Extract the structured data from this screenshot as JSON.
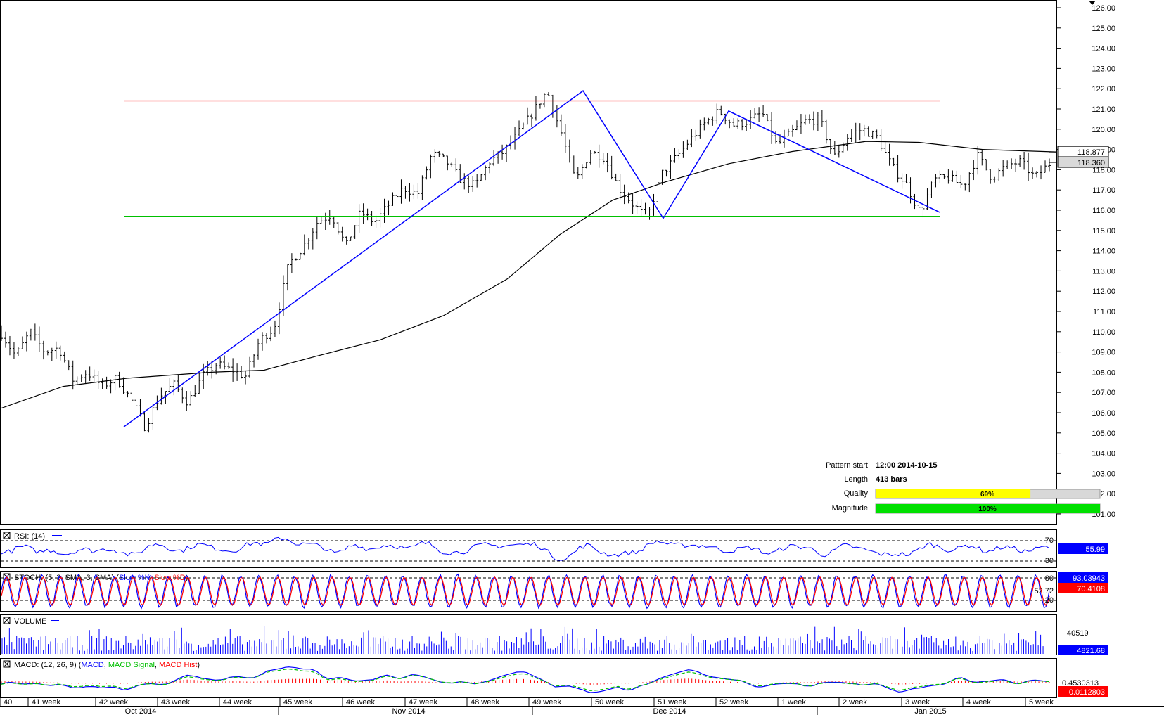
{
  "price_axis": {
    "min": 101,
    "max": 126,
    "ticks": [
      "126.00",
      "125.00",
      "124.00",
      "123.00",
      "122.00",
      "121.00",
      "120.00",
      "119.00",
      "118.00",
      "117.00",
      "116.00",
      "115.00",
      "114.00",
      "113.00",
      "112.00",
      "111.00",
      "110.00",
      "109.00",
      "108.00",
      "107.00",
      "106.00",
      "105.00",
      "104.00",
      "103.00",
      "102.00",
      "101.00"
    ],
    "badges": [
      {
        "label": "118.877",
        "value": 118.877,
        "bg": "#ffffff",
        "fg": "#000000"
      },
      {
        "label": "118.360",
        "value": 118.36,
        "bg": "#d9d9d9",
        "fg": "#000000"
      }
    ]
  },
  "pattern_info": {
    "rows": [
      {
        "label": "Pattern start",
        "value": "12:00 2014-10-15"
      },
      {
        "label": "Length",
        "value": "413 bars"
      }
    ],
    "quality": {
      "label": "Quality",
      "text": "69%",
      "fraction": 0.69,
      "color": "#ffff00"
    },
    "magnitude": {
      "label": "Magnitude",
      "text": "100%",
      "fraction": 1.0,
      "color": "#00e000"
    }
  },
  "indicators": {
    "rsi": {
      "title": "RSI: (14)",
      "levels": [
        "70",
        "30"
      ],
      "badge": "55.99",
      "badge_color": "#0000ff"
    },
    "stoch": {
      "title_prefix": "STOCH: (5, 3, SMA, 3, SMA) (",
      "k_label": "Slow %K",
      "sep": ", ",
      "d_label": "Slow %D",
      "title_suffix": ")",
      "levels": [
        "80",
        "52.72",
        "20"
      ],
      "badges": [
        {
          "label": "93.03943",
          "color": "#0000ff"
        },
        {
          "label": "70.4108",
          "color": "#ff0000"
        }
      ]
    },
    "volume": {
      "title": "VOLUME",
      "level": "40519",
      "badge": "4821.68",
      "badge_color": "#0000ff"
    },
    "macd": {
      "title_prefix": "MACD: (12, 26, 9) (",
      "macd_label": "MACD",
      "signal_label": "MACD Signal",
      "hist_label": "MACD Hist",
      "sep": ", ",
      "title_suffix": ")",
      "level": "0.4530313",
      "badge": "0.0112803",
      "badge_color": "#ff0000"
    }
  },
  "time_axis": {
    "weeks": [
      "40",
      "41 week",
      "42 week",
      "43 week",
      "44 week",
      "45 week",
      "46 week",
      "47 week",
      "48 week",
      "49 week",
      "50 week",
      "51 week",
      "52 week",
      "1 week",
      "2 week",
      "3 week",
      "4 week",
      "5 week"
    ],
    "months": [
      "Oct 2014",
      "Nov 2014",
      "Dec 2014",
      "Jan 2015"
    ]
  },
  "colors": {
    "resistance": "#ff0000",
    "support": "#00c000",
    "pattern": "#0000ff",
    "ma": "#000000",
    "bars": "#000000",
    "rsi": "#0000ff",
    "stoch_k": "#0000ff",
    "stoch_d": "#ff0000",
    "macd": "#0000ff",
    "macd_signal": "#00c000",
    "macd_hist": "#ff0000"
  },
  "chart_data": {
    "type": "ohlc",
    "title": "",
    "ylim": [
      101,
      126
    ],
    "resistance_level": 121.4,
    "support_level": 115.7,
    "pattern_points": [
      {
        "time": "2014-10-15 12:00",
        "price": 105.3
      },
      {
        "time": "2014-11-21",
        "price": 121.9
      },
      {
        "time": "2014-12-16",
        "price": 115.6
      },
      {
        "time": "2014-12-23",
        "price": 120.9
      },
      {
        "time": "2015-01-14",
        "price": 115.9
      }
    ],
    "price_path": [
      [
        109.9,
        108.8
      ],
      [
        110.0,
        109.0
      ],
      [
        109.2,
        107.6
      ],
      [
        108.0,
        107.3
      ],
      [
        107.7,
        106.7
      ],
      [
        105.3,
        106.8
      ],
      [
        107.4,
        106.5
      ],
      [
        107.8,
        108.4
      ],
      [
        108.1,
        107.8
      ],
      [
        109.6,
        110.2
      ],
      [
        113.3,
        114.2
      ],
      [
        115.4,
        115.8
      ],
      [
        114.2,
        115.9
      ],
      [
        115.4,
        116.3
      ],
      [
        117.1,
        116.8
      ],
      [
        118.8,
        118.4
      ],
      [
        117.5,
        117.2
      ],
      [
        118.4,
        118.9
      ],
      [
        119.8,
        120.8
      ],
      [
        121.9,
        119.8
      ],
      [
        117.4,
        118.9
      ],
      [
        118.6,
        117.1
      ],
      [
        116.3,
        115.6
      ],
      [
        117.8,
        118.6
      ],
      [
        119.5,
        120.3
      ],
      [
        120.9,
        120.2
      ],
      [
        120.4,
        120.8
      ],
      [
        119.2,
        119.8
      ],
      [
        120.4,
        120.5
      ],
      [
        118.6,
        119.7
      ],
      [
        120.0,
        119.6
      ],
      [
        118.2,
        117.3
      ],
      [
        115.9,
        117.5
      ],
      [
        117.6,
        117.2
      ],
      [
        118.7,
        117.6
      ],
      [
        118.2,
        118.4
      ],
      [
        117.6,
        118.3
      ]
    ],
    "moving_average": [
      [
        0,
        106.2
      ],
      [
        0.06,
        107.3
      ],
      [
        0.12,
        107.7
      ],
      [
        0.2,
        108.0
      ],
      [
        0.25,
        108.1
      ],
      [
        0.3,
        108.8
      ],
      [
        0.36,
        109.6
      ],
      [
        0.42,
        110.8
      ],
      [
        0.48,
        112.6
      ],
      [
        0.53,
        114.8
      ],
      [
        0.58,
        116.5
      ],
      [
        0.63,
        117.4
      ],
      [
        0.69,
        118.3
      ],
      [
        0.75,
        118.9
      ],
      [
        0.82,
        119.4
      ],
      [
        0.87,
        119.35
      ],
      [
        0.93,
        119.0
      ],
      [
        1.0,
        118.88
      ]
    ],
    "last_price": 118.36,
    "moving_average_last": 118.877,
    "rsi_last": 55.99,
    "stoch_k_last": 93.03943,
    "stoch_d_last": 70.4108,
    "volume_last": 4821.68,
    "macd_last": 0.0112803
  }
}
